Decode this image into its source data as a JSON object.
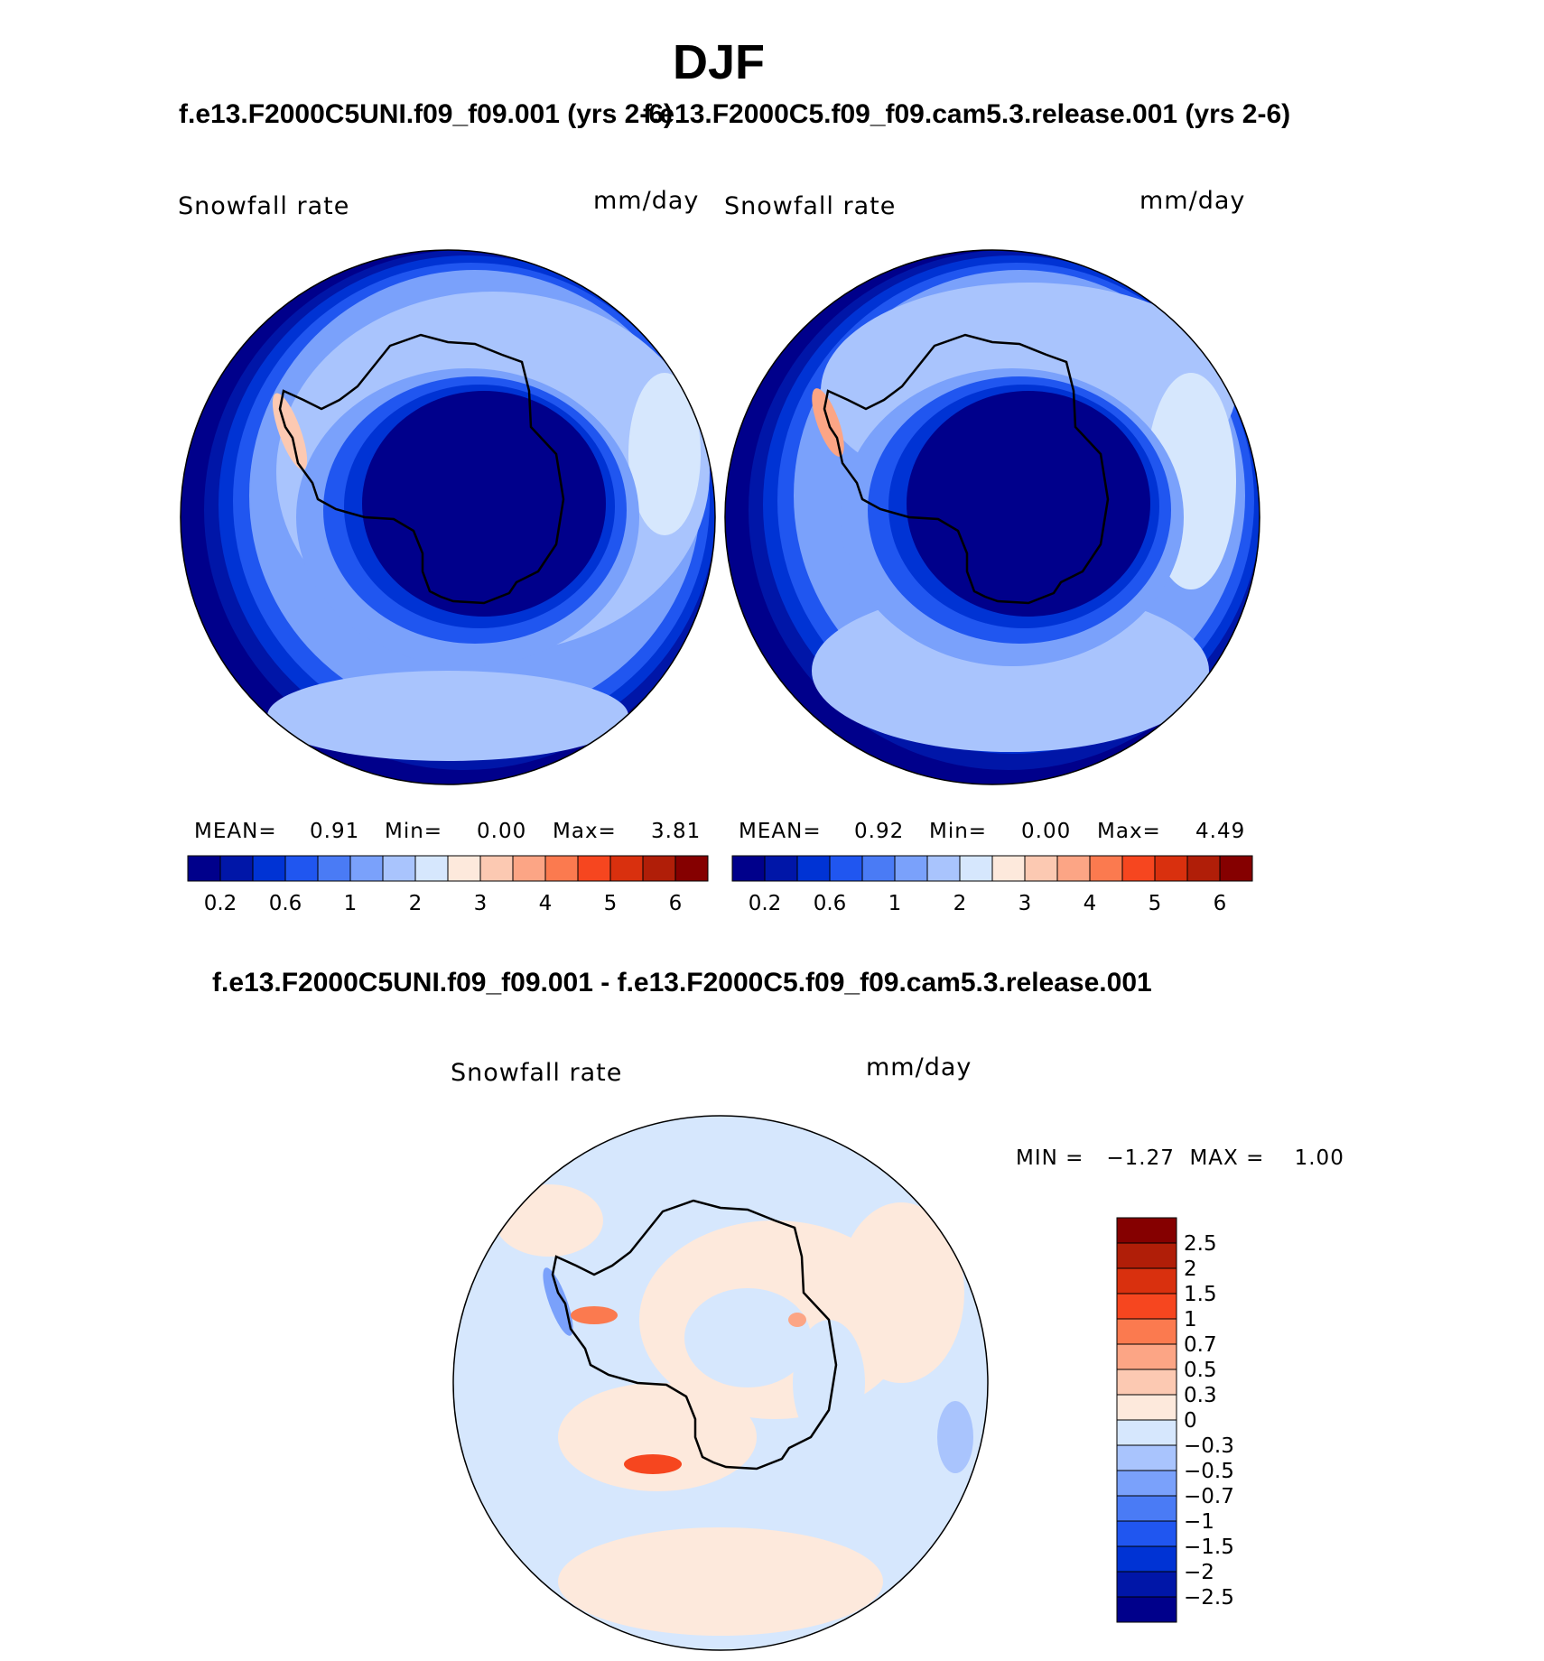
{
  "page": {
    "title": "DJF",
    "subtitle_left": "f.e13.F2000C5UNI.f09_f09.001 (yrs 2-6)",
    "subtitle_right": "f.e13.F2000C5.f09_f09.cam5.3.release.001 (yrs 2-6)",
    "diff_title": "f.e13.F2000C5UNI.f09_f09.001 - f.e13.F2000C5.f09_f09.cam5.3.release.001"
  },
  "panels": [
    {
      "variable": "Snowfall rate",
      "units": "mm/day",
      "stats": {
        "mean_label": "MEAN=",
        "mean": "0.91",
        "min_label": "Min=",
        "min": "0.00",
        "max_label": "Max=",
        "max": "3.81"
      }
    },
    {
      "variable": "Snowfall rate",
      "units": "mm/day",
      "stats": {
        "mean_label": "MEAN=",
        "mean": "0.92",
        "min_label": "Min=",
        "min": "0.00",
        "max_label": "Max=",
        "max": "4.49"
      }
    }
  ],
  "diff_panel": {
    "variable": "Snowfall rate",
    "units": "mm/day",
    "minmax": "MIN =   −1.27  MAX =    1.00"
  },
  "chart_data": [
    {
      "type": "heatmap",
      "projection": "south polar stereographic",
      "title": "f.e13.F2000C5UNI.f09_f09.001 (yrs 2-6)",
      "variable": "Snowfall rate",
      "units": "mm/day",
      "mean": 0.91,
      "min": 0.0,
      "max": 3.81,
      "colorbar": {
        "orientation": "horizontal",
        "tick_labels": [
          "0.2",
          "0.6",
          "1",
          "2",
          "3",
          "4",
          "5",
          "6"
        ],
        "colors": [
          "#00008b",
          "#0016a8",
          "#0033d4",
          "#2056f0",
          "#4a7bf5",
          "#7aa1fb",
          "#a9c4fd",
          "#d6e7fd",
          "#fde9dc",
          "#fcc9b2",
          "#fca585",
          "#fb7a4f",
          "#f6461f",
          "#d9300e",
          "#b01e08",
          "#850000"
        ]
      }
    },
    {
      "type": "heatmap",
      "projection": "south polar stereographic",
      "title": "f.e13.F2000C5.f09_f09.cam5.3.release.001 (yrs 2-6)",
      "variable": "Snowfall rate",
      "units": "mm/day",
      "mean": 0.92,
      "min": 0.0,
      "max": 4.49,
      "colorbar": {
        "orientation": "horizontal",
        "tick_labels": [
          "0.2",
          "0.6",
          "1",
          "2",
          "3",
          "4",
          "5",
          "6"
        ],
        "colors": [
          "#00008b",
          "#0016a8",
          "#0033d4",
          "#2056f0",
          "#4a7bf5",
          "#7aa1fb",
          "#a9c4fd",
          "#d6e7fd",
          "#fde9dc",
          "#fcc9b2",
          "#fca585",
          "#fb7a4f",
          "#f6461f",
          "#d9300e",
          "#b01e08",
          "#850000"
        ]
      }
    },
    {
      "type": "heatmap",
      "projection": "south polar stereographic",
      "title": "f.e13.F2000C5UNI.f09_f09.001 - f.e13.F2000C5.f09_f09.cam5.3.release.001",
      "variable": "Snowfall rate",
      "units": "mm/day",
      "min": -1.27,
      "max": 1.0,
      "colorbar": {
        "orientation": "vertical",
        "tick_labels": [
          "2.5",
          "2",
          "1.5",
          "1",
          "0.7",
          "0.5",
          "0.3",
          "0",
          "−0.3",
          "−0.5",
          "−0.7",
          "−1",
          "−1.5",
          "−2",
          "−2.5"
        ],
        "colors": [
          "#850000",
          "#b01e08",
          "#d9300e",
          "#f6461f",
          "#fb7a4f",
          "#fca585",
          "#fcc9b2",
          "#fde9dc",
          "#d6e7fd",
          "#a9c4fd",
          "#7aa1fb",
          "#4a7bf5",
          "#2056f0",
          "#0033d4",
          "#0016a8",
          "#00008b"
        ]
      }
    }
  ]
}
